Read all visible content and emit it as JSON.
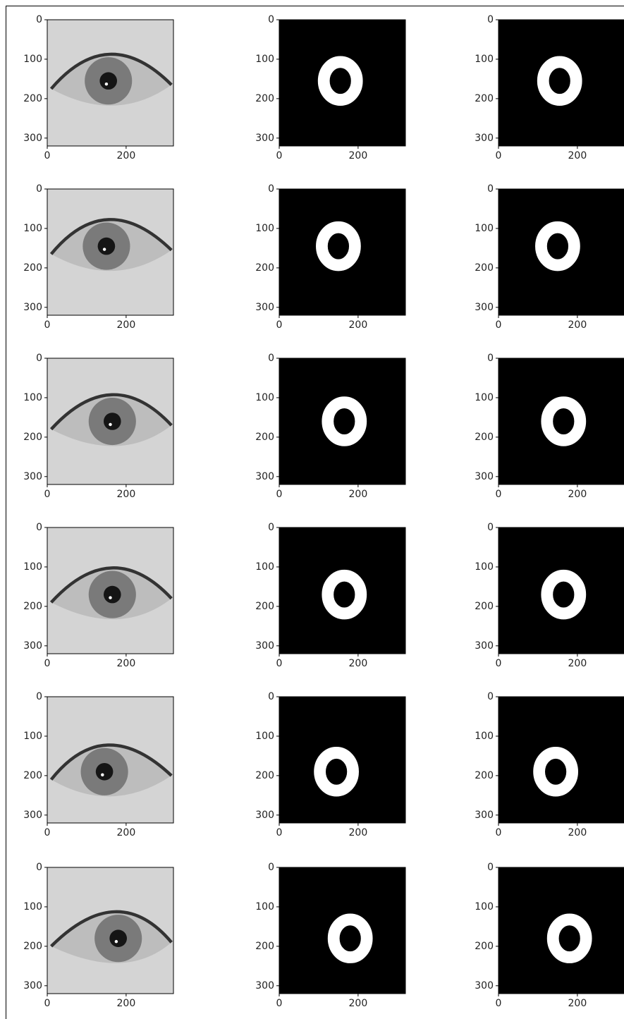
{
  "chart_data": [
    {
      "type": "image",
      "xlim": [
        0,
        320
      ],
      "ylim": [
        320,
        0
      ],
      "xticks": [
        0,
        200
      ],
      "yticks": [
        0,
        100,
        200,
        300
      ]
    },
    {
      "type": "mask",
      "xlim": [
        0,
        320
      ],
      "ylim": [
        320,
        0
      ],
      "xticks": [
        0,
        200
      ],
      "yticks": [
        0,
        100,
        200,
        300
      ]
    },
    {
      "type": "mask",
      "xlim": [
        0,
        320
      ],
      "ylim": [
        320,
        0
      ],
      "xticks": [
        0,
        200
      ],
      "yticks": [
        0,
        100,
        200,
        300
      ]
    },
    {
      "type": "image",
      "xlim": [
        0,
        320
      ],
      "ylim": [
        320,
        0
      ],
      "xticks": [
        0,
        200
      ],
      "yticks": [
        0,
        100,
        200,
        300
      ]
    },
    {
      "type": "mask",
      "xlim": [
        0,
        320
      ],
      "ylim": [
        320,
        0
      ],
      "xticks": [
        0,
        200
      ],
      "yticks": [
        0,
        100,
        200,
        300
      ]
    },
    {
      "type": "mask",
      "xlim": [
        0,
        320
      ],
      "ylim": [
        320,
        0
      ],
      "xticks": [
        0,
        200
      ],
      "yticks": [
        0,
        100,
        200,
        300
      ]
    },
    {
      "type": "image",
      "xlim": [
        0,
        320
      ],
      "ylim": [
        320,
        0
      ],
      "xticks": [
        0,
        200
      ],
      "yticks": [
        0,
        100,
        200,
        300
      ]
    },
    {
      "type": "mask",
      "xlim": [
        0,
        320
      ],
      "ylim": [
        320,
        0
      ],
      "xticks": [
        0,
        200
      ],
      "yticks": [
        0,
        100,
        200,
        300
      ]
    },
    {
      "type": "mask",
      "xlim": [
        0,
        320
      ],
      "ylim": [
        320,
        0
      ],
      "xticks": [
        0,
        200
      ],
      "yticks": [
        0,
        100,
        200,
        300
      ]
    },
    {
      "type": "image",
      "xlim": [
        0,
        320
      ],
      "ylim": [
        320,
        0
      ],
      "xticks": [
        0,
        200
      ],
      "yticks": [
        0,
        100,
        200,
        300
      ]
    },
    {
      "type": "mask",
      "xlim": [
        0,
        320
      ],
      "ylim": [
        320,
        0
      ],
      "xticks": [
        0,
        200
      ],
      "yticks": [
        0,
        100,
        200,
        300
      ]
    },
    {
      "type": "mask",
      "xlim": [
        0,
        320
      ],
      "ylim": [
        320,
        0
      ],
      "xticks": [
        0,
        200
      ],
      "yticks": [
        0,
        100,
        200,
        300
      ]
    },
    {
      "type": "image",
      "xlim": [
        0,
        320
      ],
      "ylim": [
        320,
        0
      ],
      "xticks": [
        0,
        200
      ],
      "yticks": [
        0,
        100,
        200,
        300
      ]
    },
    {
      "type": "mask",
      "xlim": [
        0,
        320
      ],
      "ylim": [
        320,
        0
      ],
      "xticks": [
        0,
        200
      ],
      "yticks": [
        0,
        100,
        200,
        300
      ]
    },
    {
      "type": "mask",
      "xlim": [
        0,
        320
      ],
      "ylim": [
        320,
        0
      ],
      "xticks": [
        0,
        200
      ],
      "yticks": [
        0,
        100,
        200,
        300
      ]
    },
    {
      "type": "image",
      "xlim": [
        0,
        320
      ],
      "ylim": [
        320,
        0
      ],
      "xticks": [
        0,
        200
      ],
      "yticks": [
        0,
        100,
        200,
        300
      ]
    },
    {
      "type": "mask",
      "xlim": [
        0,
        320
      ],
      "ylim": [
        320,
        0
      ],
      "xticks": [
        0,
        200
      ],
      "yticks": [
        0,
        100,
        200,
        300
      ]
    },
    {
      "type": "mask",
      "xlim": [
        0,
        320
      ],
      "ylim": [
        320,
        0
      ],
      "xticks": [
        0,
        200
      ],
      "yticks": [
        0,
        100,
        200,
        300
      ]
    }
  ]
}
